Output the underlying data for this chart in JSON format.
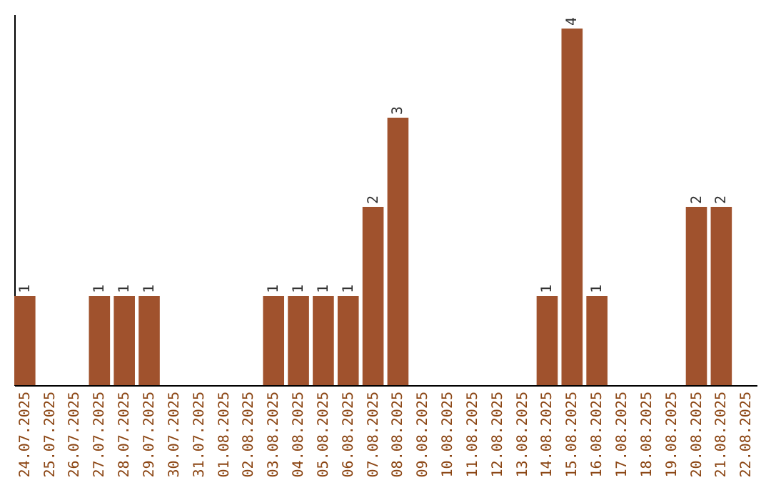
{
  "chart_data": {
    "type": "bar",
    "categories": [
      "24.07.2025",
      "25.07.2025",
      "26.07.2025",
      "27.07.2025",
      "28.07.2025",
      "29.07.2025",
      "30.07.2025",
      "31.07.2025",
      "01.08.2025",
      "02.08.2025",
      "03.08.2025",
      "04.08.2025",
      "05.08.2025",
      "06.08.2025",
      "07.08.2025",
      "08.08.2025",
      "09.08.2025",
      "10.08.2025",
      "11.08.2025",
      "12.08.2025",
      "13.08.2025",
      "14.08.2025",
      "15.08.2025",
      "16.08.2025",
      "17.08.2025",
      "18.08.2025",
      "19.08.2025",
      "20.08.2025",
      "21.08.2025",
      "22.08.2025"
    ],
    "values": [
      1,
      0,
      0,
      1,
      1,
      1,
      0,
      0,
      0,
      0,
      1,
      1,
      1,
      1,
      2,
      3,
      0,
      0,
      0,
      0,
      0,
      1,
      4,
      1,
      0,
      0,
      0,
      2,
      2,
      0
    ],
    "value_labels": [
      "1",
      null,
      null,
      "1",
      "1",
      "1",
      null,
      null,
      null,
      null,
      "1",
      "1",
      "1",
      "1",
      "2",
      "3",
      null,
      null,
      null,
      null,
      null,
      "1",
      "4",
      "1",
      null,
      null,
      null,
      "2",
      "2",
      null
    ],
    "color": "#a0522d",
    "grid": false,
    "tick_labels": "x"
  }
}
